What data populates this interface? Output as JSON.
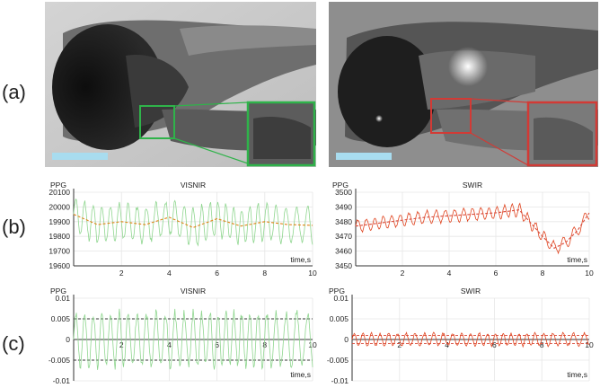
{
  "panel_labels": [
    "(a)",
    "(b)",
    "(c)"
  ],
  "micrographs": [
    {
      "name": "visnir-micrograph",
      "scale_bar_color": "#a8dcef",
      "inset_color": "#2fb34a"
    },
    {
      "name": "swir-micrograph",
      "scale_bar_color": "#a8dcef",
      "inset_color": "#d23a35"
    }
  ],
  "colors": {
    "green_trace": "#8fd68f",
    "orange_trend": "#e0851a",
    "red_trace": "#e0441f",
    "red_dashed": "#d84a3a",
    "axis": "#333333",
    "grid": "#e6e6e6"
  },
  "chart_data": [
    {
      "id": "b-left",
      "type": "line",
      "title": "VISNIR",
      "ylabel": "PPG",
      "xlabel": "time,s",
      "xlim": [
        0,
        10
      ],
      "ylim": [
        19600,
        20100
      ],
      "yticks": [
        19600,
        19700,
        19800,
        19900,
        20000,
        20100
      ],
      "xticks": [
        2,
        4,
        6,
        8,
        10
      ],
      "series": [
        {
          "kind": "oscillating",
          "color": "#8fd68f",
          "values_summary": "green PPG trace oscillating ~19700–20080 around trend"
        },
        {
          "kind": "trend-dashed",
          "color": "#e0851a",
          "x": [
            0,
            1,
            2,
            3,
            4,
            5,
            6,
            7,
            8,
            9,
            10
          ],
          "values": [
            19950,
            19880,
            19900,
            19880,
            19930,
            19860,
            19920,
            19870,
            19900,
            19880,
            19875
          ]
        }
      ]
    },
    {
      "id": "b-right",
      "type": "line",
      "title": "SWIR",
      "ylabel": "PPG",
      "xlabel": "time,s",
      "xlim": [
        0,
        10
      ],
      "ylim": [
        3450,
        3500
      ],
      "yticks": [
        3450,
        3460,
        3470,
        3480,
        3490,
        3500
      ],
      "xticks": [
        2,
        4,
        6,
        8,
        10
      ],
      "series": [
        {
          "kind": "oscillating",
          "color": "#e0441f",
          "values_summary": "red PPG trace oscillating around trend"
        },
        {
          "kind": "trend-dashed",
          "color": "#d84a3a",
          "x": [
            0,
            1,
            2,
            3,
            4,
            5,
            6,
            7,
            8,
            8.5,
            9,
            9.5,
            10
          ],
          "values": [
            3477,
            3479,
            3481,
            3483,
            3484,
            3485,
            3486,
            3488,
            3470,
            3462,
            3466,
            3474,
            3486
          ]
        }
      ]
    },
    {
      "id": "c-left",
      "type": "line",
      "title": "VISNIR",
      "ylabel": "PPG",
      "xlabel": "time,s",
      "xlim": [
        0,
        10
      ],
      "ylim": [
        -0.01,
        0.01
      ],
      "yticks": [
        -0.01,
        -0.005,
        0,
        0.005,
        0.01
      ],
      "ytick_labels": [
        "-0.01",
        "-0.005",
        "0",
        "0.005",
        "0.01"
      ],
      "xticks": [
        2,
        4,
        6,
        8,
        10
      ],
      "hlines": [
        0.005,
        -0.005
      ],
      "series": [
        {
          "kind": "oscillating",
          "color": "#8fd68f",
          "values_summary": "detrended green trace within about ±0.008"
        }
      ]
    },
    {
      "id": "c-right",
      "type": "line",
      "title": "SWIR",
      "ylabel": "PPG",
      "xlabel": "time,s",
      "xlim": [
        0,
        10
      ],
      "ylim": [
        -0.01,
        0.01
      ],
      "yticks": [
        -0.01,
        -0.005,
        0,
        0.005,
        0.01
      ],
      "ytick_labels": [
        "-0.01",
        "-0.005",
        "0",
        "0.005",
        "0.01"
      ],
      "xticks": [
        2,
        4,
        6,
        8,
        10
      ],
      "hlines": [
        0.001,
        -0.001
      ],
      "series": [
        {
          "kind": "oscillating",
          "color": "#e0441f",
          "values_summary": "detrended red trace within about ±0.002"
        }
      ]
    }
  ]
}
